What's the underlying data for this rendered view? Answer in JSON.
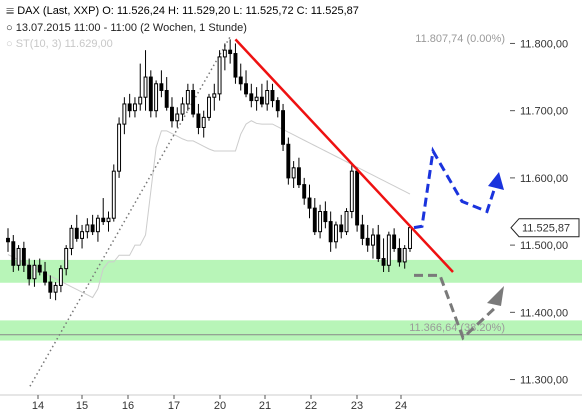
{
  "header": {
    "title_line": "DAX (Last, XXP)  O: 11.526,24  H: 11.529,20  L: 11.525,72  C: 11.525,87",
    "range_line": "13.07.2015 11:00 - 11:00 (2 Wochen, 1 Stunde)",
    "indicator_line": "ST(10, 3)  11.629,00"
  },
  "colors": {
    "trendline": "#ee1111",
    "bullish_path": "#1a33dd",
    "bearish_path": "#7a7a7a",
    "support_zone": "#b8f5b8",
    "candles": "#000000",
    "supertrend": "#cccccc",
    "dotted_trend": "#777777"
  },
  "chart_data": {
    "type": "candlestick",
    "ylim": [
      11280,
      11820
    ],
    "y_ticks": [
      11300,
      11400,
      11500,
      11600,
      11700,
      11800
    ],
    "y_tick_labels": [
      "11.300,00",
      "11.400,00",
      "11.500,00",
      "11.600,00",
      "11.700,00",
      "11.800,00"
    ],
    "x_ticks": [
      "14",
      "15",
      "16",
      "17",
      "20",
      "21",
      "22",
      "23",
      "24"
    ],
    "last_price_label": "11.525,87",
    "last_price": 11525.87,
    "annotations": {
      "high_level": {
        "label": "11.807,74 (0.00%)",
        "value": 11807.74
      },
      "fib_level": {
        "label": "11.366,64 (38.20%)",
        "value": 11366.64
      }
    },
    "support_zones": [
      [
        11444,
        11478
      ],
      [
        11358,
        11388
      ]
    ],
    "candles": [
      [
        11510,
        11525,
        11490,
        11505
      ],
      [
        11505,
        11515,
        11460,
        11470
      ],
      [
        11470,
        11500,
        11462,
        11495
      ],
      [
        11495,
        11505,
        11460,
        11470
      ],
      [
        11470,
        11480,
        11440,
        11450
      ],
      [
        11450,
        11478,
        11438,
        11470
      ],
      [
        11470,
        11480,
        11455,
        11460
      ],
      [
        11460,
        11475,
        11440,
        11445
      ],
      [
        11445,
        11455,
        11420,
        11430
      ],
      [
        11430,
        11445,
        11418,
        11440
      ],
      [
        11440,
        11470,
        11430,
        11465
      ],
      [
        11465,
        11500,
        11455,
        11495
      ],
      [
        11495,
        11530,
        11485,
        11525
      ],
      [
        11525,
        11545,
        11505,
        11510
      ],
      [
        11510,
        11530,
        11495,
        11520
      ],
      [
        11520,
        11540,
        11510,
        11530
      ],
      [
        11530,
        11545,
        11515,
        11520
      ],
      [
        11520,
        11545,
        11505,
        11540
      ],
      [
        11540,
        11570,
        11530,
        11535
      ],
      [
        11535,
        11550,
        11520,
        11540
      ],
      [
        11540,
        11620,
        11535,
        11610
      ],
      [
        11610,
        11690,
        11600,
        11680
      ],
      [
        11680,
        11720,
        11665,
        11710
      ],
      [
        11710,
        11725,
        11690,
        11700
      ],
      [
        11700,
        11720,
        11690,
        11710
      ],
      [
        11710,
        11770,
        11700,
        11720
      ],
      [
        11720,
        11790,
        11700,
        11750
      ],
      [
        11750,
        11760,
        11690,
        11700
      ],
      [
        11700,
        11745,
        11690,
        11740
      ],
      [
        11740,
        11760,
        11720,
        11730
      ],
      [
        11730,
        11750,
        11700,
        11705
      ],
      [
        11705,
        11720,
        11675,
        11685
      ],
      [
        11685,
        11705,
        11675,
        11695
      ],
      [
        11695,
        11720,
        11685,
        11710
      ],
      [
        11710,
        11740,
        11700,
        11730
      ],
      [
        11730,
        11740,
        11690,
        11695
      ],
      [
        11695,
        11710,
        11665,
        11675
      ],
      [
        11675,
        11700,
        11660,
        11690
      ],
      [
        11690,
        11725,
        11685,
        11720
      ],
      [
        11720,
        11740,
        11700,
        11725
      ],
      [
        11725,
        11790,
        11715,
        11780
      ],
      [
        11780,
        11800,
        11760,
        11790
      ],
      [
        11790,
        11806,
        11770,
        11785
      ],
      [
        11785,
        11800,
        11740,
        11750
      ],
      [
        11750,
        11770,
        11730,
        11740
      ],
      [
        11740,
        11760,
        11720,
        11725
      ],
      [
        11725,
        11740,
        11705,
        11715
      ],
      [
        11715,
        11735,
        11700,
        11720
      ],
      [
        11720,
        11740,
        11705,
        11710
      ],
      [
        11710,
        11745,
        11700,
        11730
      ],
      [
        11730,
        11740,
        11705,
        11715
      ],
      [
        11715,
        11720,
        11690,
        11700
      ],
      [
        11700,
        11710,
        11640,
        11650
      ],
      [
        11650,
        11660,
        11590,
        11600
      ],
      [
        11600,
        11625,
        11585,
        11615
      ],
      [
        11615,
        11630,
        11585,
        11590
      ],
      [
        11590,
        11600,
        11560,
        11570
      ],
      [
        11570,
        11590,
        11540,
        11555
      ],
      [
        11555,
        11570,
        11515,
        11520
      ],
      [
        11520,
        11560,
        11510,
        11550
      ],
      [
        11550,
        11565,
        11525,
        11535
      ],
      [
        11535,
        11550,
        11490,
        11505
      ],
      [
        11505,
        11535,
        11495,
        11530
      ],
      [
        11530,
        11545,
        11510,
        11520
      ],
      [
        11520,
        11555,
        11515,
        11550
      ],
      [
        11550,
        11620,
        11540,
        11610
      ],
      [
        11610,
        11615,
        11520,
        11530
      ],
      [
        11530,
        11545,
        11500,
        11510
      ],
      [
        11510,
        11530,
        11490,
        11500
      ],
      [
        11500,
        11525,
        11480,
        11515
      ],
      [
        11515,
        11530,
        11475,
        11480
      ],
      [
        11480,
        11510,
        11460,
        11470
      ],
      [
        11470,
        11520,
        11460,
        11515
      ],
      [
        11515,
        11525,
        11490,
        11495
      ],
      [
        11495,
        11510,
        11468,
        11475
      ],
      [
        11475,
        11500,
        11465,
        11495
      ],
      [
        11495,
        11530,
        11490,
        11526
      ]
    ]
  }
}
